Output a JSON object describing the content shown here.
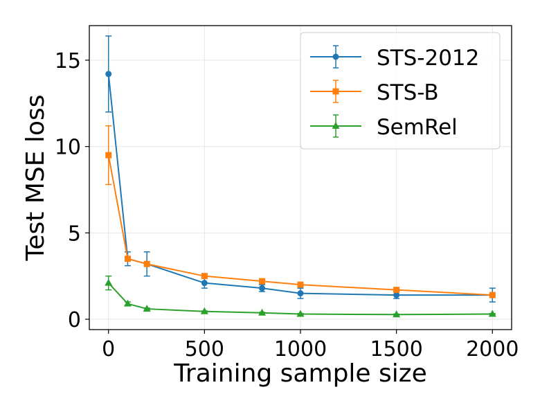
{
  "chart_data": {
    "type": "line",
    "title": "",
    "xlabel": "Training sample size",
    "ylabel": "Test MSE loss",
    "xlim": [
      -100,
      2100
    ],
    "ylim": [
      -0.6,
      17.0
    ],
    "xticks": [
      0,
      500,
      1000,
      1500,
      2000
    ],
    "yticks": [
      0,
      5,
      10,
      15
    ],
    "grid": true,
    "legend_position": "top-right",
    "series": [
      {
        "name": "STS-2012",
        "color": "#1f77b4",
        "marker": "circle",
        "x": [
          0,
          100,
          200,
          500,
          800,
          1000,
          1500,
          2000
        ],
        "y": [
          14.2,
          3.5,
          3.2,
          2.1,
          1.8,
          1.5,
          1.4,
          1.4
        ],
        "err": [
          2.2,
          0.4,
          0.7,
          0.3,
          0.2,
          0.3,
          0.2,
          0.4
        ]
      },
      {
        "name": "STS-B",
        "color": "#ff7f0e",
        "marker": "square",
        "x": [
          0,
          100,
          200,
          500,
          800,
          1000,
          1500,
          2000
        ],
        "y": [
          9.5,
          3.5,
          3.2,
          2.5,
          2.2,
          2.0,
          1.7,
          1.4
        ],
        "err": [
          1.7,
          0.1,
          0.1,
          0.05,
          0.05,
          0.05,
          0.05,
          0.05
        ]
      },
      {
        "name": "SemRel",
        "color": "#2ca02c",
        "marker": "triangle",
        "x": [
          0,
          100,
          200,
          500,
          800,
          1000,
          1500,
          2000
        ],
        "y": [
          2.1,
          0.9,
          0.6,
          0.45,
          0.37,
          0.3,
          0.27,
          0.3
        ],
        "err": [
          0.4,
          0.1,
          0.05,
          0.03,
          0.03,
          0.03,
          0.03,
          0.03
        ]
      }
    ]
  }
}
